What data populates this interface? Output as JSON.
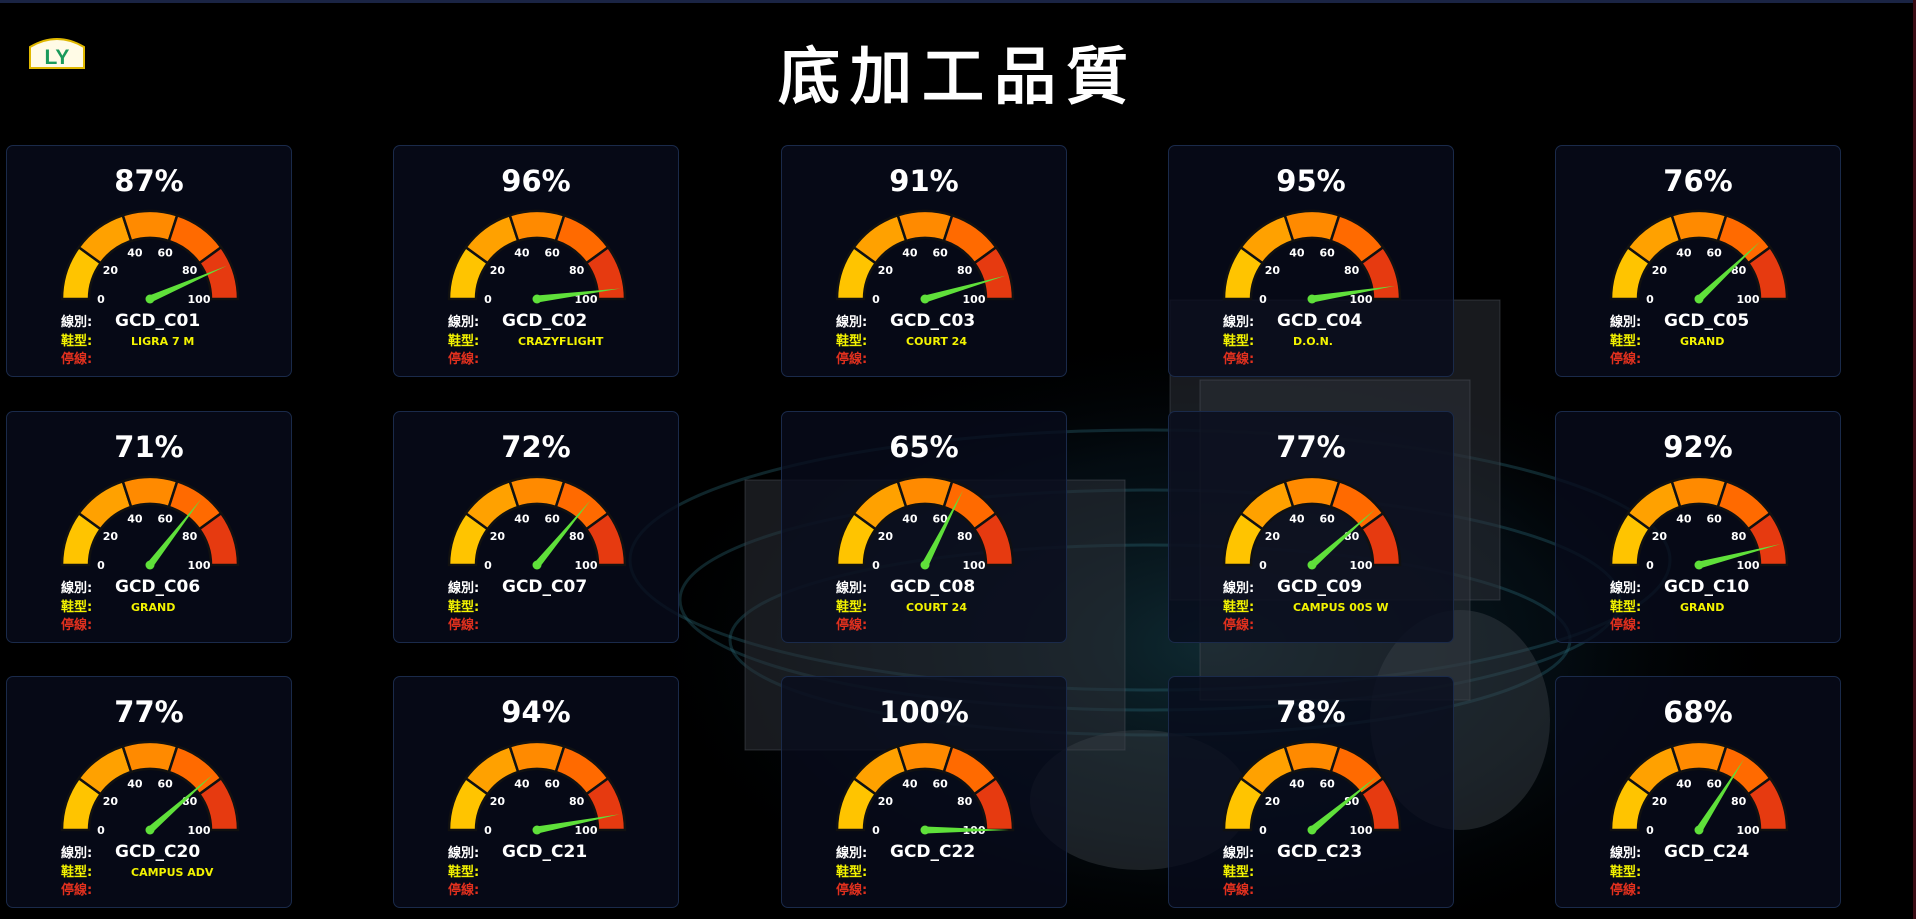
{
  "header": {
    "title": "底加工品質",
    "logo_text": "LY"
  },
  "labels": {
    "line": "線別:",
    "shoe": "鞋型:",
    "stop": "停線:"
  },
  "colors": {
    "background": "#000000",
    "card_bg": "#080c1c",
    "needle": "#5fe03a",
    "line_label": "#ffffff",
    "shoe_label": "#f3f300",
    "stop_label": "#e0301e"
  },
  "gauge": {
    "min": 0,
    "max": 100,
    "ticks": [
      "0",
      "20",
      "40",
      "60",
      "80",
      "100"
    ],
    "band_colors": [
      "#ffc400",
      "#ffa100",
      "#ff8a00",
      "#ff6a00",
      "#e63a10"
    ]
  },
  "lines": [
    {
      "id": "GCD_C01",
      "value": 87,
      "pct_text": "87%",
      "shoe": "LIGRA 7 M",
      "stop": ""
    },
    {
      "id": "GCD_C02",
      "value": 96,
      "pct_text": "96%",
      "shoe": "CRAZYFLIGHT",
      "stop": ""
    },
    {
      "id": "GCD_C03",
      "value": 91,
      "pct_text": "91%",
      "shoe": "COURT 24",
      "stop": ""
    },
    {
      "id": "GCD_C04",
      "value": 95,
      "pct_text": "95%",
      "shoe": "D.O.N.",
      "stop": ""
    },
    {
      "id": "GCD_C05",
      "value": 76,
      "pct_text": "76%",
      "shoe": "GRAND",
      "stop": ""
    },
    {
      "id": "GCD_C06",
      "value": 71,
      "pct_text": "71%",
      "shoe": "GRAND",
      "stop": ""
    },
    {
      "id": "GCD_C07",
      "value": 72,
      "pct_text": "72%",
      "shoe": "",
      "stop": ""
    },
    {
      "id": "GCD_C08",
      "value": 65,
      "pct_text": "65%",
      "shoe": "COURT 24",
      "stop": ""
    },
    {
      "id": "GCD_C09",
      "value": 77,
      "pct_text": "77%",
      "shoe": "CAMPUS 00S W",
      "stop": ""
    },
    {
      "id": "GCD_C10",
      "value": 92,
      "pct_text": "92%",
      "shoe": "GRAND",
      "stop": ""
    },
    {
      "id": "GCD_C20",
      "value": 77,
      "pct_text": "77%",
      "shoe": "CAMPUS ADV",
      "stop": ""
    },
    {
      "id": "GCD_C21",
      "value": 94,
      "pct_text": "94%",
      "shoe": "",
      "stop": ""
    },
    {
      "id": "GCD_C22",
      "value": 100,
      "pct_text": "100%",
      "shoe": "",
      "stop": ""
    },
    {
      "id": "GCD_C23",
      "value": 78,
      "pct_text": "78%",
      "shoe": "",
      "stop": ""
    },
    {
      "id": "GCD_C24",
      "value": 68,
      "pct_text": "68%",
      "shoe": "",
      "stop": ""
    }
  ]
}
